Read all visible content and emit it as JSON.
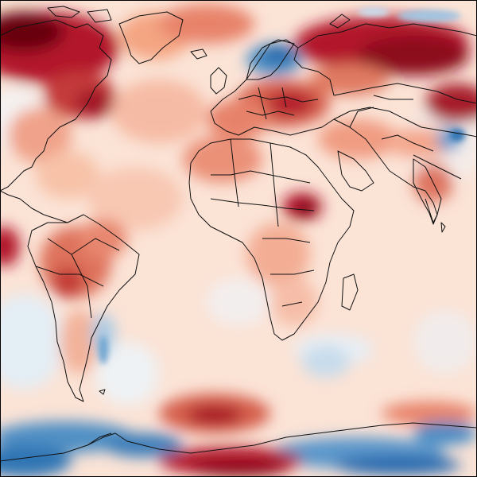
{
  "map": {
    "type": "global-anomaly-map",
    "projection": "equirectangular",
    "colormap": {
      "strong_warm": "#67000d",
      "warm": "#b2182b",
      "mild_warm": "#ef8a62",
      "slight_warm": "#fddbc7",
      "neutral": "#f7f7f7",
      "slight_cool": "#d1e5f0",
      "cool": "#67a9cf",
      "strong_cool": "#2166ac",
      "deep_cool": "#053061"
    },
    "coastline_color": "#000000",
    "border_color": "#222222",
    "colorbar": false,
    "regions": [
      {
        "name": "north-america",
        "anomaly": "warm"
      },
      {
        "name": "greenland",
        "anomaly": "mild-warm"
      },
      {
        "name": "scandinavia",
        "anomaly": "cool"
      },
      {
        "name": "europe",
        "anomaly": "warm"
      },
      {
        "name": "siberia",
        "anomaly": "strong-warm"
      },
      {
        "name": "africa",
        "anomaly": "mild-warm"
      },
      {
        "name": "south-america",
        "anomaly": "warm"
      },
      {
        "name": "australia",
        "anomaly": "slight-warm"
      },
      {
        "name": "antarctica",
        "anomaly": "mixed"
      },
      {
        "name": "southern-ocean",
        "anomaly": "cool"
      }
    ]
  }
}
